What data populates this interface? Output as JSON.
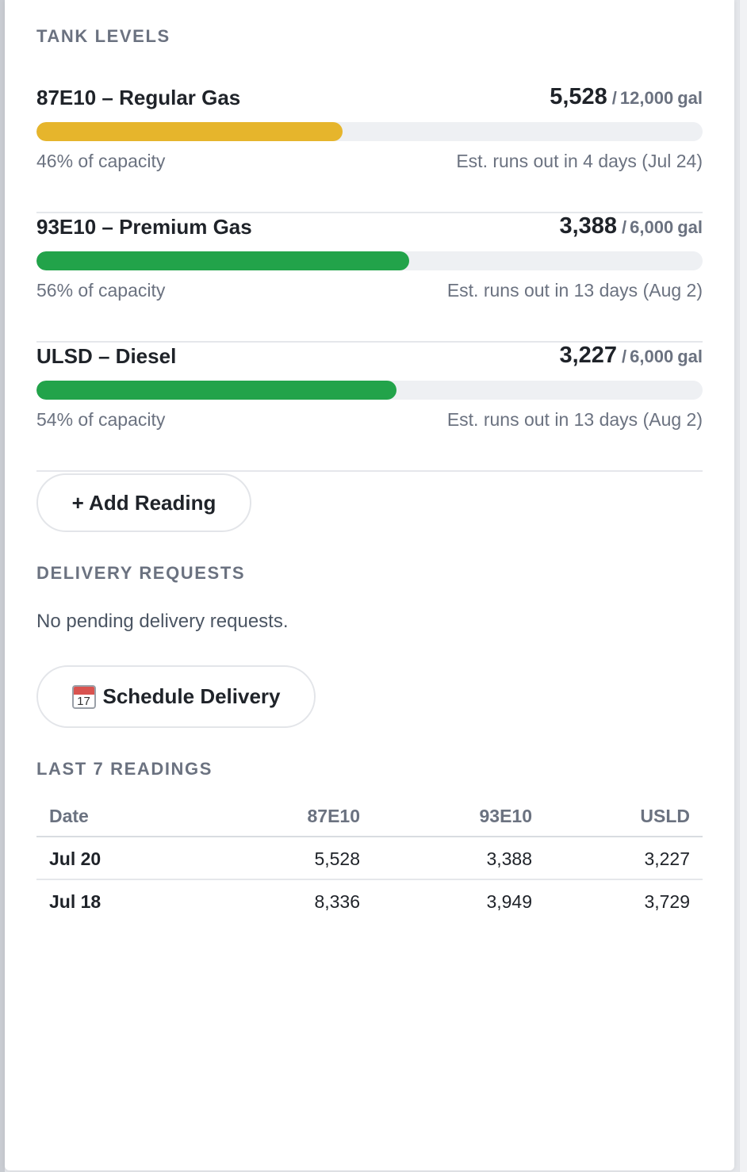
{
  "sections": {
    "tank_levels_title": "TANK LEVELS",
    "delivery_requests_title": "DELIVERY REQUESTS",
    "last_readings_title": "LAST 7 READINGS"
  },
  "tanks": [
    {
      "name": "87E10 – Regular Gas",
      "current": "5,528",
      "separator": "/",
      "capacity": "12,000",
      "unit": "gal",
      "level_fraction": 0.46,
      "color": "#e6b52c",
      "pct_label": "46% of capacity",
      "estimate": "Est. runs out in 4 days (Jul 24)"
    },
    {
      "name": "93E10 – Premium Gas",
      "current": "3,388",
      "separator": "/",
      "capacity": "6,000",
      "unit": "gal",
      "level_fraction": 0.56,
      "color": "#22a34a",
      "pct_label": "56% of capacity",
      "estimate": "Est. runs out in 13 days (Aug 2)"
    },
    {
      "name": "ULSD – Diesel",
      "current": "3,227",
      "separator": "/",
      "capacity": "6,000",
      "unit": "gal",
      "level_fraction": 0.54,
      "color": "#22a34a",
      "pct_label": "54% of capacity",
      "estimate": "Est. runs out in 13 days (Aug 2)"
    }
  ],
  "buttons": {
    "add_reading": "+ Add Reading",
    "schedule_delivery": "Schedule Delivery",
    "schedule_icon": "calendar-icon",
    "schedule_icon_day": "17"
  },
  "delivery": {
    "empty_message": "No pending delivery requests."
  },
  "readings": {
    "headers": {
      "date": "Date",
      "c87": "87E10",
      "c93": "93E10",
      "usld": "USLD"
    },
    "rows": [
      {
        "date": "Jul 20",
        "c87": "5,528",
        "c93": "3,388",
        "usld": "3,227"
      },
      {
        "date": "Jul 18",
        "c87": "8,336",
        "c93": "3,949",
        "usld": "3,729"
      }
    ]
  }
}
